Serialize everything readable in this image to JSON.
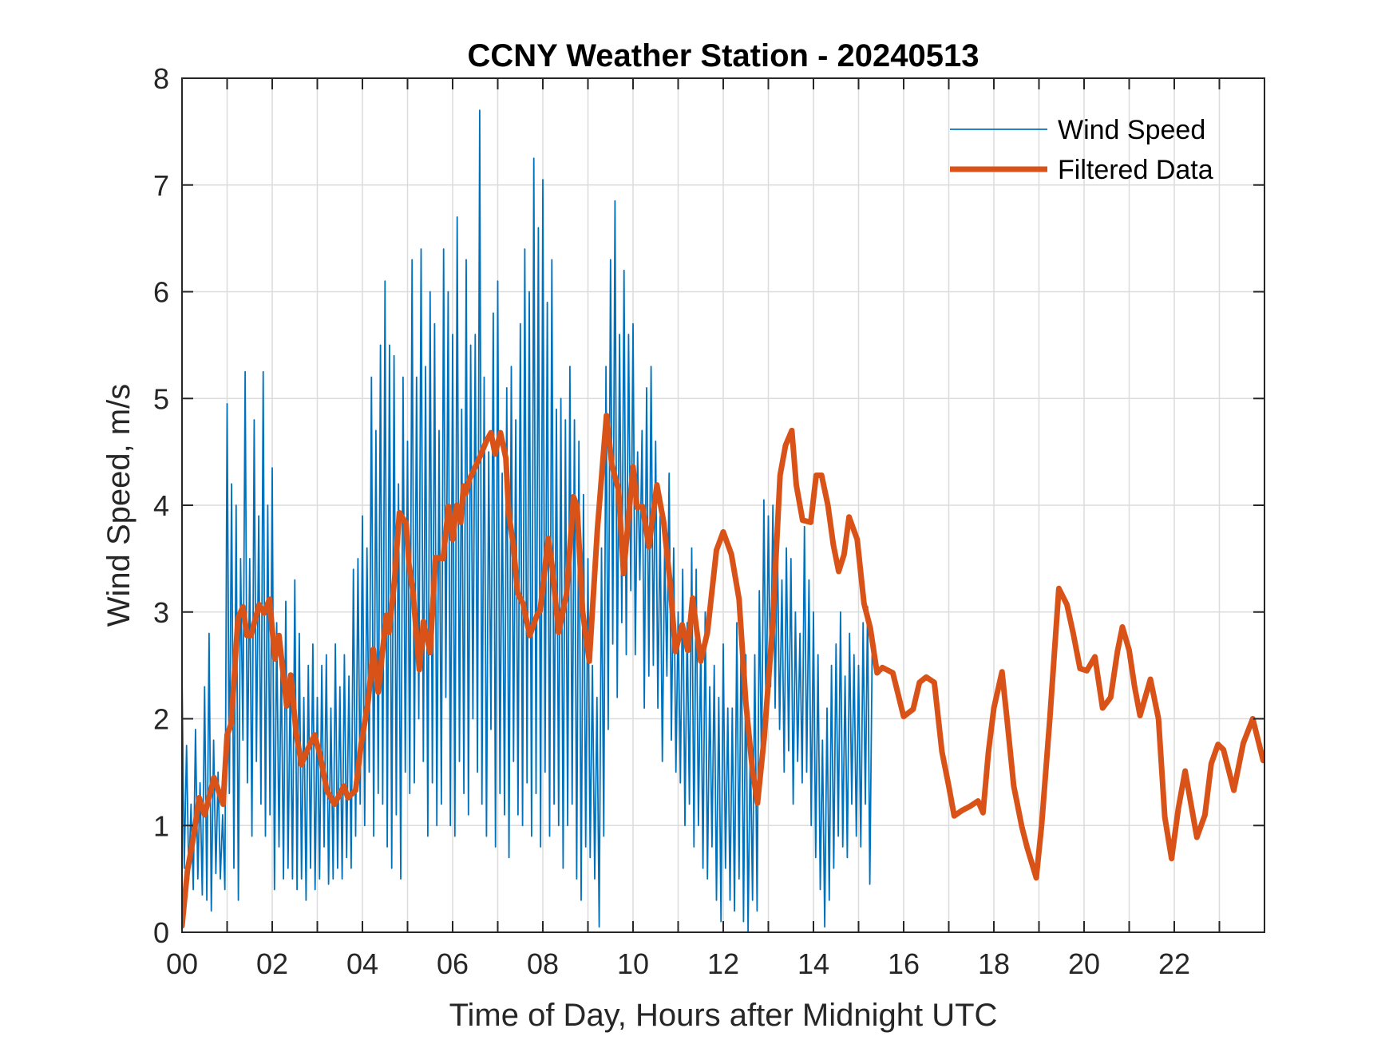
{
  "chart_data": {
    "type": "line",
    "title": "CCNY Weather Station - 20240513",
    "xlabel": "Time of Day, Hours after Midnight UTC",
    "ylabel": "Wind Speed, m/s",
    "xlim": [
      0,
      24
    ],
    "ylim": [
      0,
      8
    ],
    "xticks": [
      0,
      2,
      4,
      6,
      8,
      10,
      12,
      14,
      16,
      18,
      20,
      22
    ],
    "xtick_labels": [
      "00",
      "02",
      "04",
      "06",
      "08",
      "10",
      "12",
      "14",
      "16",
      "18",
      "20",
      "22"
    ],
    "xgrid_step_hours": 1,
    "yticks": [
      0,
      1,
      2,
      3,
      4,
      5,
      6,
      7,
      8
    ],
    "ytick_labels": [
      "0",
      "1",
      "2",
      "3",
      "4",
      "5",
      "6",
      "7",
      "8"
    ],
    "grid": true,
    "legend_position": "top-right",
    "series": [
      {
        "name": "Wind Speed",
        "color": "#0072BD",
        "style": "thin",
        "x_start": 0,
        "x_step": 0.05,
        "values": [
          2.45,
          0.6,
          1.75,
          0.5,
          1.2,
          0.4,
          1.9,
          0.5,
          1.4,
          0.35,
          2.3,
          0.3,
          2.8,
          0.2,
          1.8,
          0.55,
          1.5,
          0.5,
          1.1,
          0.4,
          4.95,
          1.3,
          4.2,
          0.6,
          4.0,
          0.3,
          3.5,
          1.8,
          5.25,
          1.4,
          3.5,
          0.9,
          4.8,
          1.6,
          3.9,
          1.2,
          5.25,
          0.9,
          4.0,
          1.1,
          4.35,
          0.4,
          2.9,
          0.8,
          2.6,
          0.5,
          3.1,
          0.6,
          2.4,
          0.5,
          3.3,
          0.4,
          2.8,
          0.5,
          2.2,
          0.3,
          2.5,
          0.6,
          2.7,
          0.4,
          2.2,
          0.5,
          2.5,
          0.8,
          2.6,
          0.45,
          2.1,
          0.5,
          2.7,
          0.6,
          2.3,
          0.5,
          2.6,
          0.7,
          2.4,
          0.6,
          3.4,
          0.9,
          3.5,
          1.2,
          3.9,
          1.0,
          3.6,
          1.5,
          5.2,
          0.9,
          4.7,
          1.3,
          5.5,
          1.2,
          6.1,
          0.8,
          5.5,
          0.6,
          5.4,
          1.1,
          4.2,
          0.5,
          5.2,
          1.5,
          4.6,
          1.3,
          6.3,
          1.4,
          5.2,
          2.0,
          6.4,
          1.6,
          5.3,
          0.9,
          6.0,
          1.4,
          5.7,
          1.0,
          4.7,
          1.2,
          6.4,
          2.2,
          6.0,
          1.0,
          5.6,
          0.9,
          6.7,
          1.6,
          4.9,
          1.3,
          6.3,
          1.1,
          5.5,
          2.0,
          5.6,
          1.5,
          7.7,
          1.2,
          5.2,
          0.9,
          4.5,
          1.9,
          5.8,
          0.8,
          6.1,
          1.3,
          4.3,
          1.1,
          5.1,
          0.7,
          5.3,
          1.6,
          4.8,
          1.1,
          5.7,
          1.0,
          6.4,
          1.4,
          6.0,
          0.9,
          7.25,
          1.3,
          6.6,
          0.8,
          7.05,
          1.5,
          5.9,
          0.9,
          6.3,
          1.2,
          4.9,
          1.0,
          5.0,
          0.6,
          4.8,
          1.0,
          5.3,
          1.2,
          4.8,
          0.5,
          4.6,
          0.3,
          4.1,
          0.8,
          3.5,
          0.7,
          2.5,
          0.5,
          2.2,
          0.05,
          3.6,
          0.9,
          5.3,
          1.9,
          6.3,
          2.7,
          6.85,
          2.2,
          5.6,
          2.9,
          6.2,
          2.6,
          5.6,
          3.2,
          5.7,
          2.6,
          4.5,
          3.3,
          4.7,
          2.1,
          5.1,
          2.4,
          5.3,
          2.5,
          4.6,
          2.1,
          3.9,
          1.6,
          3.6,
          2.4,
          4.3,
          1.8,
          3.6,
          1.5,
          3.0,
          1.4,
          3.4,
          1.0,
          2.9,
          1.2,
          3.6,
          0.8,
          3.4,
          1.0,
          2.7,
          0.6,
          3.0,
          0.5,
          2.3,
          0.8,
          2.5,
          0.3,
          2.2,
          0.1,
          2.7,
          0.6,
          2.1,
          0.3,
          2.1,
          0.2,
          2.9,
          0.5,
          3.0,
          0.1,
          2.6,
          0.0,
          1.8,
          0.3,
          2.6,
          0.2,
          3.2,
          1.5,
          4.05,
          1.9,
          3.9,
          2.3,
          4.0,
          2.1,
          3.7,
          1.9,
          3.3,
          1.5,
          3.6,
          1.7,
          3.5,
          1.2,
          3.0,
          1.6,
          2.8,
          1.4,
          3.8,
          1.5,
          3.3,
          1.0,
          3.0,
          0.7,
          2.6,
          0.4,
          1.8,
          0.05,
          2.1,
          0.3,
          2.5,
          0.6,
          2.7,
          0.9,
          3.0,
          0.8,
          2.4,
          0.7,
          2.8,
          1.2,
          2.6,
          0.9,
          2.5,
          0.8,
          2.9,
          1.2,
          3.05,
          0.45,
          2.6
        ]
      },
      {
        "name": "Filtered Data",
        "color": "#D95319",
        "style": "thick",
        "points": [
          [
            0.0,
            0.06
          ],
          [
            0.12,
            0.58
          ],
          [
            0.24,
            0.86
          ],
          [
            0.38,
            1.26
          ],
          [
            0.5,
            1.1
          ],
          [
            0.71,
            1.45
          ],
          [
            0.91,
            1.2
          ],
          [
            1.0,
            1.85
          ],
          [
            1.09,
            1.95
          ],
          [
            1.24,
            2.94
          ],
          [
            1.35,
            3.05
          ],
          [
            1.44,
            2.78
          ],
          [
            1.53,
            2.78
          ],
          [
            1.71,
            3.07
          ],
          [
            1.82,
            2.99
          ],
          [
            1.94,
            3.12
          ],
          [
            2.06,
            2.56
          ],
          [
            2.15,
            2.78
          ],
          [
            2.32,
            2.12
          ],
          [
            2.41,
            2.41
          ],
          [
            2.53,
            1.87
          ],
          [
            2.65,
            1.57
          ],
          [
            2.76,
            1.69
          ],
          [
            2.94,
            1.85
          ],
          [
            3.06,
            1.66
          ],
          [
            3.21,
            1.33
          ],
          [
            3.38,
            1.2
          ],
          [
            3.59,
            1.37
          ],
          [
            3.68,
            1.26
          ],
          [
            3.85,
            1.33
          ],
          [
            3.97,
            1.76
          ],
          [
            4.12,
            2.14
          ],
          [
            4.24,
            2.65
          ],
          [
            4.35,
            2.25
          ],
          [
            4.53,
            2.97
          ],
          [
            4.59,
            2.81
          ],
          [
            4.71,
            3.29
          ],
          [
            4.82,
            3.93
          ],
          [
            4.97,
            3.83
          ],
          [
            5.03,
            3.45
          ],
          [
            5.12,
            3.19
          ],
          [
            5.26,
            2.46
          ],
          [
            5.35,
            2.91
          ],
          [
            5.5,
            2.62
          ],
          [
            5.62,
            3.51
          ],
          [
            5.79,
            3.5
          ],
          [
            5.91,
            3.99
          ],
          [
            6.0,
            3.68
          ],
          [
            6.09,
            4.0
          ],
          [
            6.18,
            3.84
          ],
          [
            6.24,
            4.18
          ],
          [
            6.29,
            4.11
          ],
          [
            6.38,
            4.25
          ],
          [
            6.6,
            4.45
          ],
          [
            6.76,
            4.61
          ],
          [
            6.85,
            4.68
          ],
          [
            6.94,
            4.48
          ],
          [
            7.06,
            4.68
          ],
          [
            7.18,
            4.44
          ],
          [
            7.24,
            3.94
          ],
          [
            7.35,
            3.61
          ],
          [
            7.44,
            3.18
          ],
          [
            7.56,
            3.08
          ],
          [
            7.71,
            2.78
          ],
          [
            7.88,
            2.98
          ],
          [
            7.94,
            3.01
          ],
          [
            8.12,
            3.69
          ],
          [
            8.21,
            3.41
          ],
          [
            8.35,
            2.81
          ],
          [
            8.53,
            3.18
          ],
          [
            8.68,
            4.08
          ],
          [
            8.76,
            3.99
          ],
          [
            8.88,
            3.01
          ],
          [
            9.03,
            2.54
          ],
          [
            9.21,
            3.78
          ],
          [
            9.41,
            4.84
          ],
          [
            9.53,
            4.38
          ],
          [
            9.68,
            4.14
          ],
          [
            9.79,
            3.36
          ],
          [
            10.0,
            4.36
          ],
          [
            10.09,
            3.98
          ],
          [
            10.21,
            3.99
          ],
          [
            10.35,
            3.61
          ],
          [
            10.53,
            4.19
          ],
          [
            10.68,
            3.84
          ],
          [
            10.82,
            3.28
          ],
          [
            10.94,
            2.63
          ],
          [
            11.09,
            2.88
          ],
          [
            11.21,
            2.64
          ],
          [
            11.32,
            3.13
          ],
          [
            11.5,
            2.54
          ],
          [
            11.65,
            2.81
          ],
          [
            11.85,
            3.58
          ],
          [
            12.0,
            3.75
          ],
          [
            12.18,
            3.54
          ],
          [
            12.35,
            3.12
          ],
          [
            12.5,
            2.15
          ],
          [
            12.65,
            1.51
          ],
          [
            12.76,
            1.21
          ],
          [
            12.91,
            1.83
          ],
          [
            13.09,
            2.85
          ],
          [
            13.26,
            4.28
          ],
          [
            13.38,
            4.56
          ],
          [
            13.52,
            4.7
          ],
          [
            13.62,
            4.19
          ],
          [
            13.76,
            3.86
          ],
          [
            13.94,
            3.84
          ],
          [
            14.06,
            4.28
          ],
          [
            14.18,
            4.28
          ],
          [
            14.32,
            4.0
          ],
          [
            14.44,
            3.63
          ],
          [
            14.56,
            3.38
          ],
          [
            14.68,
            3.54
          ],
          [
            14.79,
            3.89
          ],
          [
            14.97,
            3.68
          ],
          [
            15.12,
            3.08
          ],
          [
            15.26,
            2.85
          ],
          [
            15.41,
            2.43
          ],
          [
            15.53,
            2.48
          ],
          [
            15.76,
            2.43
          ],
          [
            16.0,
            2.02
          ],
          [
            16.21,
            2.09
          ],
          [
            16.35,
            2.34
          ],
          [
            16.5,
            2.39
          ],
          [
            16.68,
            2.34
          ],
          [
            16.85,
            1.69
          ],
          [
            17.0,
            1.37
          ],
          [
            17.12,
            1.09
          ],
          [
            17.29,
            1.14
          ],
          [
            17.47,
            1.18
          ],
          [
            17.65,
            1.23
          ],
          [
            17.76,
            1.12
          ],
          [
            17.88,
            1.69
          ],
          [
            18.0,
            2.1
          ],
          [
            18.18,
            2.44
          ],
          [
            18.29,
            2.0
          ],
          [
            18.44,
            1.37
          ],
          [
            18.62,
            0.99
          ],
          [
            18.74,
            0.79
          ],
          [
            18.94,
            0.51
          ],
          [
            19.06,
            1.01
          ],
          [
            19.24,
            2.0
          ],
          [
            19.44,
            3.22
          ],
          [
            19.62,
            3.07
          ],
          [
            19.76,
            2.8
          ],
          [
            19.91,
            2.47
          ],
          [
            20.06,
            2.45
          ],
          [
            20.24,
            2.58
          ],
          [
            20.41,
            2.1
          ],
          [
            20.59,
            2.2
          ],
          [
            20.74,
            2.63
          ],
          [
            20.85,
            2.86
          ],
          [
            21.0,
            2.64
          ],
          [
            21.12,
            2.3
          ],
          [
            21.24,
            2.03
          ],
          [
            21.47,
            2.37
          ],
          [
            21.65,
            2.0
          ],
          [
            21.79,
            1.08
          ],
          [
            21.94,
            0.69
          ],
          [
            22.09,
            1.16
          ],
          [
            22.24,
            1.51
          ],
          [
            22.5,
            0.89
          ],
          [
            22.68,
            1.1
          ],
          [
            22.82,
            1.58
          ],
          [
            22.97,
            1.76
          ],
          [
            23.09,
            1.71
          ],
          [
            23.32,
            1.33
          ],
          [
            23.53,
            1.77
          ],
          [
            23.74,
            2.0
          ],
          [
            23.97,
            1.61
          ]
        ]
      }
    ]
  }
}
